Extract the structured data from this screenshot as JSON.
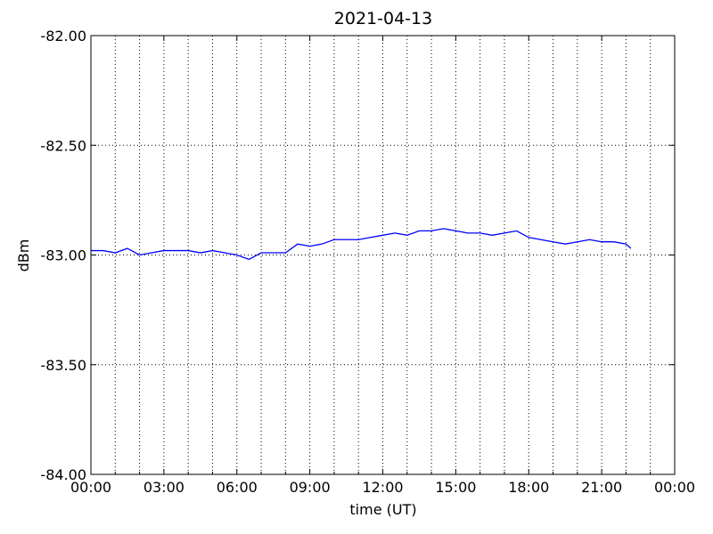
{
  "chart_data": {
    "type": "line",
    "title": "2021-04-13",
    "xlabel": "time (UT)",
    "ylabel": "dBm",
    "xlim": [
      0,
      24
    ],
    "ylim": [
      -84,
      -82
    ],
    "xticks": [
      {
        "value": 0,
        "label": "00:00"
      },
      {
        "value": 3,
        "label": "03:00"
      },
      {
        "value": 6,
        "label": "06:00"
      },
      {
        "value": 9,
        "label": "09:00"
      },
      {
        "value": 12,
        "label": "12:00"
      },
      {
        "value": 15,
        "label": "15:00"
      },
      {
        "value": 18,
        "label": "18:00"
      },
      {
        "value": 21,
        "label": "21:00"
      },
      {
        "value": 24,
        "label": "00:00"
      }
    ],
    "xminorticks": [
      1,
      2,
      4,
      5,
      7,
      8,
      10,
      11,
      13,
      14,
      16,
      17,
      19,
      20,
      22,
      23
    ],
    "yticks": [
      {
        "value": -84,
        "label": "-84.00"
      },
      {
        "value": -83.5,
        "label": "-83.50"
      },
      {
        "value": -83,
        "label": "-83.00"
      },
      {
        "value": -82.5,
        "label": "-82.50"
      },
      {
        "value": -82,
        "label": "-82.00"
      }
    ],
    "grid": true,
    "x": [
      0,
      0.5,
      1,
      1.5,
      2,
      2.5,
      3,
      3.5,
      4,
      4.5,
      5,
      5.5,
      6,
      6.5,
      7,
      7.5,
      8,
      8.5,
      9,
      9.5,
      10,
      10.5,
      11,
      11.5,
      12,
      12.5,
      13,
      13.5,
      14,
      14.5,
      15,
      15.5,
      16,
      16.5,
      17,
      17.5,
      18,
      18.5,
      19,
      19.5,
      20,
      20.5,
      21,
      21.5,
      22,
      22.2
    ],
    "series": [
      {
        "color": "#0000ff",
        "values": [
          -82.98,
          -82.98,
          -82.99,
          -82.97,
          -83.0,
          -82.99,
          -82.98,
          -82.98,
          -82.98,
          -82.99,
          -82.98,
          -82.99,
          -83.0,
          -83.02,
          -82.99,
          -82.99,
          -82.99,
          -82.95,
          -82.96,
          -82.95,
          -82.93,
          -82.93,
          -82.93,
          -82.92,
          -82.91,
          -82.9,
          -82.91,
          -82.89,
          -82.89,
          -82.88,
          -82.89,
          -82.9,
          -82.9,
          -82.91,
          -82.9,
          -82.89,
          -82.92,
          -82.93,
          -82.94,
          -82.95,
          -82.94,
          -82.93,
          -82.94,
          -82.94,
          -82.95,
          -82.97
        ]
      }
    ]
  }
}
